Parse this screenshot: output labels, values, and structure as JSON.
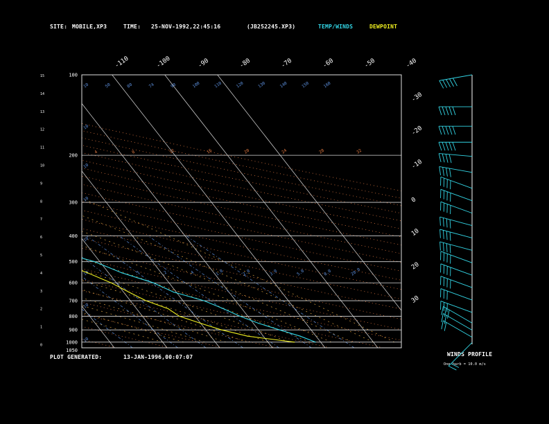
{
  "header": {
    "site_label": "SITE:",
    "site_value": "MOBILE,XP3",
    "time_label": "TIME:",
    "time_value": "25-NOV-1992,22:45:16",
    "file_id": "(JB252245.XP3)",
    "temp_winds_label": "TEMP/WINDS",
    "dewpoint_label": "DEWPOINT"
  },
  "footer": {
    "plot_generated_label": "PLOT GENERATED:",
    "plot_generated_value": "13-JAN-1996,00:07:07"
  },
  "winds_panel": {
    "title": "WINDS PROFILE",
    "note": "One barb = 10.0 m/s"
  },
  "colors": {
    "background": "#000000",
    "temperature": "#33d6e6",
    "dewpoint": "#f0f020",
    "isobar": "#d8d8d8",
    "isotherm": "#c8c8c8",
    "dry_adiabat": "#e07840",
    "moist_adiabat": "#d8a040",
    "mixing_ratio": "#5a8cd8",
    "wind_barb": "#33d6e6"
  },
  "chart_data": {
    "type": "line",
    "title": "",
    "pressure_levels": [
      {
        "p": 1050,
        "label": "1050"
      },
      {
        "p": 1000,
        "label": "1000"
      },
      {
        "p": 900,
        "label": "900"
      },
      {
        "p": 800,
        "label": "800"
      },
      {
        "p": 700,
        "label": "700"
      },
      {
        "p": 600,
        "label": "600"
      },
      {
        "p": 500,
        "label": "500"
      },
      {
        "p": 400,
        "label": "400"
      },
      {
        "p": 300,
        "label": "300"
      },
      {
        "p": 200,
        "label": "200"
      },
      {
        "p": 100,
        "label": "100"
      }
    ],
    "height_km_labels": [
      "0",
      "1",
      "2",
      "3",
      "4",
      "5",
      "6",
      "7",
      "8",
      "9",
      "10",
      "11",
      "12",
      "13",
      "14",
      "15"
    ],
    "isotherm_labels": [
      "-110",
      "-100",
      "-90",
      "-80",
      "-70",
      "-60",
      "-50",
      "-40",
      "-30",
      "-20",
      "-10",
      "0",
      "10",
      "20",
      "30"
    ],
    "dry_adiabat_labels": [
      "4",
      "8",
      "12",
      "16",
      "20",
      "24",
      "28",
      "32"
    ],
    "mixing_ratio_labels_upper": [
      "10",
      "50",
      "80",
      "74",
      "90",
      "100",
      "110",
      "120",
      "130",
      "140",
      "150",
      "160"
    ],
    "mixing_ratio_labels_left": [
      "10",
      "10",
      "10",
      "10",
      "10",
      "10",
      "10",
      "10"
    ],
    "mixing_ratio_labels_lower": [
      ".1",
      ".2",
      ".4",
      "1.0",
      "2.0",
      "3.0",
      "5.0",
      "8.0",
      "20.0"
    ],
    "series": [
      {
        "name": "TEMP/WINDS",
        "points": [
          {
            "p": 1000,
            "t": 19.0
          },
          {
            "p": 950,
            "t": 17.0
          },
          {
            "p": 900,
            "t": 14.0
          },
          {
            "p": 850,
            "t": 11.0
          },
          {
            "p": 800,
            "t": 8.5
          },
          {
            "p": 750,
            "t": 6.5
          },
          {
            "p": 700,
            "t": 4.0
          },
          {
            "p": 650,
            "t": -0.5
          },
          {
            "p": 600,
            "t": -3.0
          },
          {
            "p": 550,
            "t": -7.5
          },
          {
            "p": 500,
            "t": -11.0
          },
          {
            "p": 450,
            "t": -17.5
          },
          {
            "p": 400,
            "t": -22.0
          },
          {
            "p": 350,
            "t": -27.0
          },
          {
            "p": 300,
            "t": -36.0
          },
          {
            "p": 250,
            "t": -44.0
          },
          {
            "p": 200,
            "t": -52.0
          },
          {
            "p": 175,
            "t": -56.0
          },
          {
            "p": 150,
            "t": -59.0
          },
          {
            "p": 130,
            "t": -60.0
          },
          {
            "p": 115,
            "t": -60.0
          },
          {
            "p": 100,
            "t": -64.0
          }
        ]
      },
      {
        "name": "DEWPOINT",
        "points": [
          {
            "p": 1000,
            "t": 15.0
          },
          {
            "p": 950,
            "t": 7.0
          },
          {
            "p": 900,
            "t": 3.0
          },
          {
            "p": 850,
            "t": 0.0
          },
          {
            "p": 800,
            "t": -3.0
          },
          {
            "p": 750,
            "t": -4.0
          },
          {
            "p": 700,
            "t": -7.0
          },
          {
            "p": 650,
            "t": -9.0
          },
          {
            "p": 600,
            "t": -11.0
          },
          {
            "p": 550,
            "t": -14.0
          },
          {
            "p": 500,
            "t": -18.0
          },
          {
            "p": 450,
            "t": -23.0
          },
          {
            "p": 400,
            "t": -28.0
          },
          {
            "p": 350,
            "t": -33.0
          },
          {
            "p": 300,
            "t": -48.0
          },
          {
            "p": 250,
            "t": -58.0
          },
          {
            "p": 200,
            "t": -65.0
          },
          {
            "p": 150,
            "t": -74.0
          },
          {
            "p": 125,
            "t": -77.0
          },
          {
            "p": 100,
            "t": -79.0
          }
        ]
      }
    ],
    "wind_profile": [
      {
        "h": 0.1,
        "dir": 225,
        "speed": 20
      },
      {
        "h": 0.4,
        "dir": 300,
        "speed": 15
      },
      {
        "h": 0.8,
        "dir": 300,
        "speed": 20
      },
      {
        "h": 1.2,
        "dir": 300,
        "speed": 25
      },
      {
        "h": 1.8,
        "dir": 290,
        "speed": 30
      },
      {
        "h": 2.5,
        "dir": 290,
        "speed": 30
      },
      {
        "h": 3.2,
        "dir": 290,
        "speed": 35
      },
      {
        "h": 3.9,
        "dir": 290,
        "speed": 35
      },
      {
        "h": 4.6,
        "dir": 290,
        "speed": 40
      },
      {
        "h": 5.3,
        "dir": 285,
        "speed": 40
      },
      {
        "h": 6.0,
        "dir": 285,
        "speed": 40
      },
      {
        "h": 6.7,
        "dir": 285,
        "speed": 35
      },
      {
        "h": 7.4,
        "dir": 290,
        "speed": 35
      },
      {
        "h": 8.1,
        "dir": 290,
        "speed": 35
      },
      {
        "h": 8.8,
        "dir": 290,
        "speed": 40
      },
      {
        "h": 9.7,
        "dir": 280,
        "speed": 40
      },
      {
        "h": 10.6,
        "dir": 275,
        "speed": 40
      },
      {
        "h": 11.4,
        "dir": 270,
        "speed": 45
      },
      {
        "h": 12.3,
        "dir": 270,
        "speed": 45
      },
      {
        "h": 13.4,
        "dir": 270,
        "speed": 50
      },
      {
        "h": 15.2,
        "dir": 260,
        "speed": 45
      }
    ]
  }
}
